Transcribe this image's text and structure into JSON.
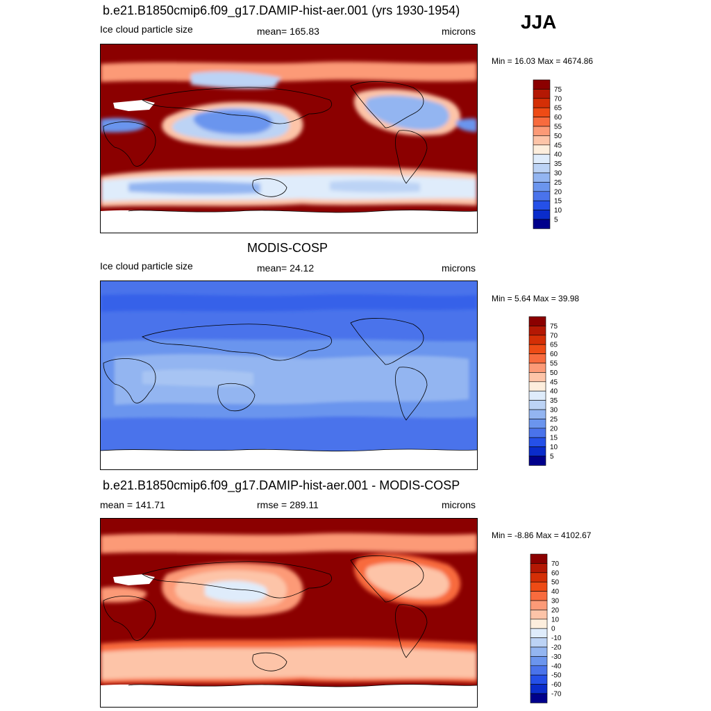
{
  "season": "JJA",
  "panels": [
    {
      "title": "b.e21.B1850cmip6.f09_g17.DAMIP-hist-aer.001 (yrs 1930-1954)",
      "left": "Ice cloud particle size",
      "center": "mean= 165.83",
      "right": "microns",
      "minmax": "Min =  16.03 Max = 4674.86",
      "scheme": "model"
    },
    {
      "title": "MODIS-COSP",
      "left": "Ice cloud particle size",
      "center": "mean=  24.12",
      "right": "microns",
      "minmax": "Min =   5.64 Max =  39.98",
      "scheme": "obs"
    },
    {
      "title": "b.e21.B1850cmip6.f09_g17.DAMIP-hist-aer.001 - MODIS-COSP",
      "left": "mean = 141.71",
      "center": "rmse = 289.11",
      "right": "microns",
      "minmax": "Min =  -8.86 Max = 4102.67",
      "scheme": "diff"
    }
  ],
  "colorbars": {
    "field": {
      "labels": [
        "75",
        "70",
        "65",
        "60",
        "55",
        "50",
        "45",
        "40",
        "35",
        "30",
        "25",
        "20",
        "15",
        "10",
        "5"
      ],
      "colors": [
        "#8b0000",
        "#b41804",
        "#d42f06",
        "#ee4b15",
        "#f86b3e",
        "#fc9a77",
        "#fdc4a8",
        "#fdeedd",
        "#dfecfb",
        "#bcd3f5",
        "#93b5f1",
        "#6b95ee",
        "#4a73eb",
        "#2550e8",
        "#0a2ccb",
        "#00008b"
      ]
    },
    "anomaly": {
      "labels": [
        "70",
        "60",
        "50",
        "40",
        "30",
        "20",
        "10",
        "0",
        "-10",
        "-20",
        "-30",
        "-40",
        "-50",
        "-60",
        "-70"
      ],
      "colors": [
        "#8b0000",
        "#b41804",
        "#d42f06",
        "#ee4b15",
        "#f86b3e",
        "#fc9a77",
        "#fdc4a8",
        "#fdeedd",
        "#dfecfb",
        "#bcd3f5",
        "#93b5f1",
        "#6b95ee",
        "#4a73eb",
        "#2550e8",
        "#0a2ccb",
        "#00008b"
      ]
    }
  }
}
